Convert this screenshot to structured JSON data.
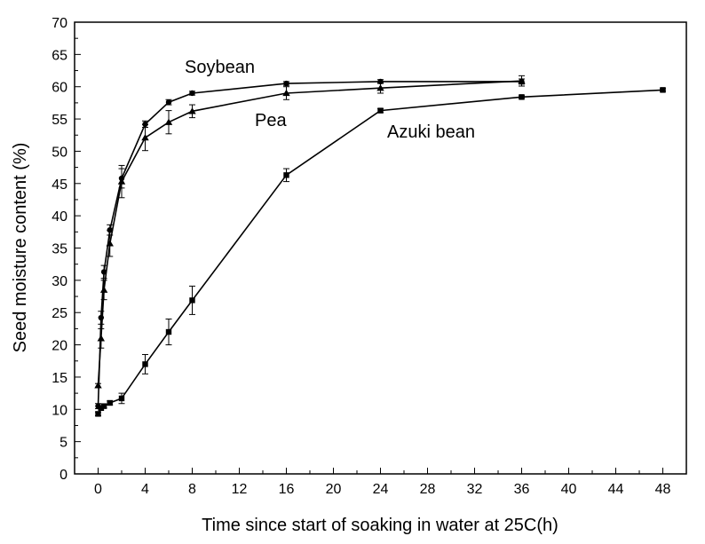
{
  "chart_data": {
    "type": "line",
    "xlabel": "Time since start of soaking in water at 25C(h)",
    "ylabel": "Seed moisture content (%)",
    "xlim": [
      -2,
      50
    ],
    "ylim": [
      0,
      70
    ],
    "xticks": [
      "0",
      "4",
      "8",
      "12",
      "16",
      "20",
      "24",
      "28",
      "32",
      "36",
      "40",
      "44",
      "48"
    ],
    "yticks": [
      "0",
      "5",
      "10",
      "15",
      "20",
      "25",
      "30",
      "35",
      "40",
      "45",
      "50",
      "55",
      "60",
      "65",
      "70"
    ],
    "grid": false,
    "series": [
      {
        "name": "Soybean",
        "marker": "circle",
        "x": [
          0,
          0.25,
          0.5,
          1,
          2,
          4,
          6,
          8,
          16,
          24,
          36
        ],
        "y": [
          10.5,
          24.2,
          31.3,
          37.8,
          45.8,
          54.2,
          57.6,
          59.0,
          60.5,
          60.8,
          60.8
        ],
        "err": [
          0.4,
          1.0,
          1.0,
          0.8,
          1.5,
          0.5,
          0.4,
          0.3,
          0.3,
          0.3,
          0.4
        ]
      },
      {
        "name": "Pea",
        "marker": "triangle",
        "x": [
          0,
          0.25,
          0.5,
          1,
          2,
          4,
          6,
          8,
          16,
          24,
          36
        ],
        "y": [
          13.7,
          21.0,
          28.5,
          35.7,
          45.3,
          52.1,
          54.5,
          56.2,
          59.0,
          59.8,
          60.9
        ],
        "err": [
          0.3,
          1.5,
          1.5,
          2.0,
          2.5,
          2.0,
          1.8,
          1.0,
          1.0,
          0.8,
          0.8
        ]
      },
      {
        "name": "Azuki bean",
        "marker": "square",
        "x": [
          0,
          0.25,
          0.5,
          1,
          2,
          4,
          6,
          8,
          16,
          24,
          36,
          48
        ],
        "y": [
          9.3,
          10.2,
          10.5,
          11.0,
          11.7,
          17.0,
          22.0,
          26.9,
          46.3,
          56.3,
          58.4,
          59.5
        ],
        "err": [
          0.3,
          0.3,
          0.3,
          0.3,
          0.8,
          1.5,
          2.0,
          2.2,
          1.0,
          0.3,
          0.2,
          0.2
        ]
      }
    ]
  }
}
